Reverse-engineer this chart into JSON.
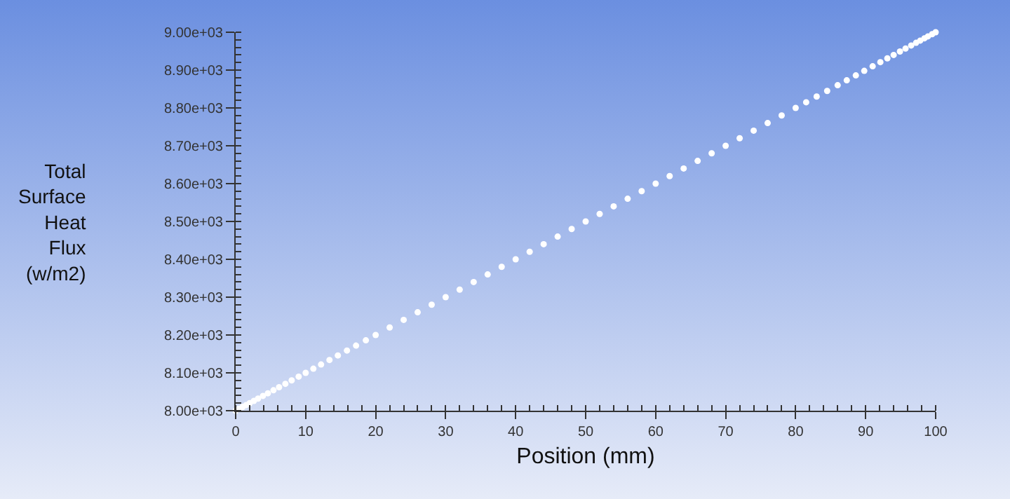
{
  "chart_data": {
    "type": "scatter",
    "xlabel": "Position (mm)",
    "ylabel": "Total Surface Heat Flux (w/m2)",
    "marker": "circle",
    "x": [
      0,
      0.5,
      1,
      1.5,
      2,
      2.6,
      3.2,
      3.9,
      4.6,
      5.4,
      6.2,
      7.1,
      8,
      9,
      10,
      11.1,
      12.2,
      13.4,
      14.6,
      15.9,
      17.2,
      18.6,
      20,
      22,
      24,
      26,
      28,
      30,
      32,
      34,
      36,
      38,
      40,
      42,
      44,
      46,
      48,
      50,
      52,
      54,
      56,
      58,
      60,
      62,
      64,
      66,
      68,
      70,
      72,
      74,
      76,
      78,
      80,
      81.5,
      83,
      84.5,
      86,
      87.3,
      88.6,
      89.8,
      91,
      92.1,
      93.1,
      94,
      94.9,
      95.7,
      96.5,
      97.2,
      97.8,
      98.4,
      98.9,
      99.5,
      100
    ],
    "series": [
      {
        "color": "#ffffff",
        "values": [
          8000,
          8005,
          8010,
          8015,
          8020,
          8026,
          8032,
          8039,
          8046,
          8054,
          8062,
          8071,
          8080,
          8090,
          8100,
          8111,
          8122,
          8134,
          8146,
          8159,
          8172,
          8186,
          8200,
          8220,
          8240,
          8260,
          8280,
          8300,
          8320,
          8340,
          8360,
          8380,
          8400,
          8420,
          8440,
          8460,
          8480,
          8500,
          8520,
          8540,
          8560,
          8580,
          8600,
          8620,
          8640,
          8660,
          8680,
          8700,
          8720,
          8740,
          8760,
          8780,
          8800,
          8815,
          8830,
          8845,
          8860,
          8873,
          8886,
          8898,
          8910,
          8921,
          8931,
          8940,
          8949,
          8957,
          8965,
          8972,
          8978,
          8984,
          8989,
          8995,
          9000
        ]
      }
    ],
    "xlim": [
      0,
      100
    ],
    "xticks": [
      0,
      10,
      20,
      30,
      40,
      50,
      60,
      70,
      80,
      90,
      100
    ],
    "ylim": [
      8000,
      9000
    ],
    "yticks": [
      {
        "value": 8000,
        "label": "8.00e+03"
      },
      {
        "value": 8100,
        "label": "8.10e+03"
      },
      {
        "value": 8200,
        "label": "8.20e+03"
      },
      {
        "value": 8300,
        "label": "8.30e+03"
      },
      {
        "value": 8400,
        "label": "8.40e+03"
      },
      {
        "value": 8500,
        "label": "8.50e+03"
      },
      {
        "value": 8600,
        "label": "8.60e+03"
      },
      {
        "value": 8700,
        "label": "8.70e+03"
      },
      {
        "value": 8800,
        "label": "8.80e+03"
      },
      {
        "value": 8900,
        "label": "8.90e+03"
      },
      {
        "value": 9000,
        "label": "9.00e+03"
      }
    ]
  }
}
